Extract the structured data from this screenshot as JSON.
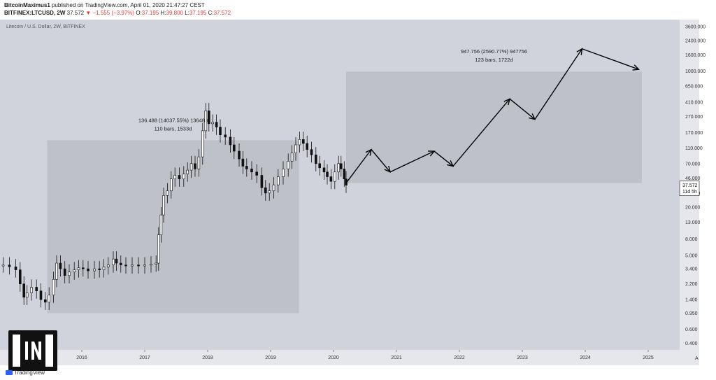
{
  "header": {
    "author": "BitcoinMaximus1",
    "published": "published on TradingView.com, April 01, 2020 21:47:27 CEST",
    "symbol": "BITFINEX:LTCUSD, 2W",
    "last": "37.572",
    "change": "−1.555 (−3.97%)",
    "o_label": "O:",
    "o_value": "37.195",
    "h_label": "H:",
    "h_value": "39.800",
    "l_label": "L:",
    "l_value": "37.195",
    "c_label": "C:",
    "c_value": "37.572"
  },
  "colors": {
    "plot_bg": "#d0d3db",
    "box_fill": "#bfc1c8",
    "candle": "#111111",
    "down_accent": "#e53935"
  },
  "footer": {
    "tradingview": "TradingView"
  },
  "chart_data": {
    "type": "candlestick",
    "title": "",
    "series_label": "Litecoin / U.S. Dollar, 2W, BITFINEX",
    "xlabel": "",
    "ylabel": "",
    "y_scale": "log",
    "ylim": [
      0.33,
      4400
    ],
    "xlim": [
      2014.7,
      2025.5
    ],
    "grid": false,
    "x_ticks": [
      "2016",
      "2017",
      "2018",
      "2019",
      "2020",
      "2021",
      "2022",
      "2023",
      "2024",
      "2025"
    ],
    "y_ticks": [
      "3600.000",
      "2400.000",
      "1600.000",
      "1000.000",
      "650.000",
      "410.000",
      "270.000",
      "170.000",
      "110.000",
      "70.000",
      "46.000",
      "30.000",
      "20.000",
      "13.000",
      "8.000",
      "5.000",
      "3.400",
      "2.200",
      "1.400",
      "0.950",
      "0.600",
      "0.400"
    ],
    "y_tick_values": [
      3600,
      2400,
      1600,
      1000,
      650,
      410,
      270,
      170,
      110,
      70,
      46,
      30,
      20,
      13,
      8,
      5,
      3.4,
      2.2,
      1.4,
      0.95,
      0.6,
      0.4
    ],
    "price_label": "37.572",
    "countdown_label": "11d 5h",
    "price": [
      [
        2014.75,
        3.8
      ],
      [
        2014.85,
        3.6
      ],
      [
        2014.95,
        3.3
      ],
      [
        2015.02,
        2.2
      ],
      [
        2015.08,
        1.5
      ],
      [
        2015.13,
        1.7
      ],
      [
        2015.2,
        2.0
      ],
      [
        2015.28,
        1.8
      ],
      [
        2015.35,
        1.4
      ],
      [
        2015.42,
        1.3
      ],
      [
        2015.48,
        1.6
      ],
      [
        2015.55,
        2.5
      ],
      [
        2015.6,
        4.0
      ],
      [
        2015.66,
        3.4
      ],
      [
        2015.73,
        2.8
      ],
      [
        2015.8,
        3.1
      ],
      [
        2015.88,
        3.3
      ],
      [
        2015.95,
        3.5
      ],
      [
        2016.02,
        3.4
      ],
      [
        2016.1,
        3.2
      ],
      [
        2016.2,
        3.4
      ],
      [
        2016.28,
        3.3
      ],
      [
        2016.35,
        3.6
      ],
      [
        2016.42,
        3.8
      ],
      [
        2016.5,
        4.5
      ],
      [
        2016.55,
        4.0
      ],
      [
        2016.62,
        3.8
      ],
      [
        2016.7,
        3.7
      ],
      [
        2016.8,
        3.8
      ],
      [
        2016.9,
        3.7
      ],
      [
        2017.0,
        3.8
      ],
      [
        2017.1,
        3.9
      ],
      [
        2017.18,
        4.0
      ],
      [
        2017.22,
        9
      ],
      [
        2017.26,
        16
      ],
      [
        2017.3,
        28
      ],
      [
        2017.36,
        32
      ],
      [
        2017.42,
        45
      ],
      [
        2017.48,
        50
      ],
      [
        2017.55,
        45
      ],
      [
        2017.62,
        52
      ],
      [
        2017.68,
        58
      ],
      [
        2017.74,
        70
      ],
      [
        2017.8,
        60
      ],
      [
        2017.86,
        85
      ],
      [
        2017.92,
        180
      ],
      [
        2017.97,
        320
      ],
      [
        2018.02,
        220
      ],
      [
        2018.08,
        230
      ],
      [
        2018.14,
        200
      ],
      [
        2018.2,
        160
      ],
      [
        2018.28,
        150
      ],
      [
        2018.36,
        120
      ],
      [
        2018.42,
        100
      ],
      [
        2018.5,
        80
      ],
      [
        2018.56,
        65
      ],
      [
        2018.62,
        60
      ],
      [
        2018.7,
        55
      ],
      [
        2018.78,
        50
      ],
      [
        2018.86,
        35
      ],
      [
        2018.92,
        30
      ],
      [
        2018.98,
        32
      ],
      [
        2019.05,
        38
      ],
      [
        2019.12,
        48
      ],
      [
        2019.2,
        60
      ],
      [
        2019.28,
        75
      ],
      [
        2019.34,
        95
      ],
      [
        2019.4,
        120
      ],
      [
        2019.46,
        140
      ],
      [
        2019.52,
        125
      ],
      [
        2019.58,
        105
      ],
      [
        2019.65,
        90
      ],
      [
        2019.72,
        70
      ],
      [
        2019.78,
        62
      ],
      [
        2019.85,
        55
      ],
      [
        2019.9,
        48
      ],
      [
        2019.96,
        42
      ],
      [
        2020.02,
        55
      ],
      [
        2020.08,
        70
      ],
      [
        2020.12,
        60
      ],
      [
        2020.17,
        45
      ],
      [
        2020.2,
        37.572
      ]
    ],
    "annotations": [
      {
        "text": "136.488 (14037.55%) 136488",
        "line2": "110 bars, 1533d",
        "x_start": 2015.45,
        "x_end": 2019.45,
        "y_low": 0.95,
        "y_high": 137
      },
      {
        "text": "947.756 (2590.77%) 947756",
        "line2": "123 bars, 1722d",
        "x_start": 2020.2,
        "x_end": 2024.9,
        "y_low": 40,
        "y_high": 988
      }
    ],
    "projection_path": [
      [
        2020.2,
        40
      ],
      [
        2020.6,
        105
      ],
      [
        2020.9,
        55
      ],
      [
        2021.6,
        100
      ],
      [
        2021.9,
        65
      ],
      [
        2022.8,
        450
      ],
      [
        2023.2,
        250
      ],
      [
        2023.95,
        1900
      ],
      [
        2024.85,
        1050
      ]
    ]
  }
}
